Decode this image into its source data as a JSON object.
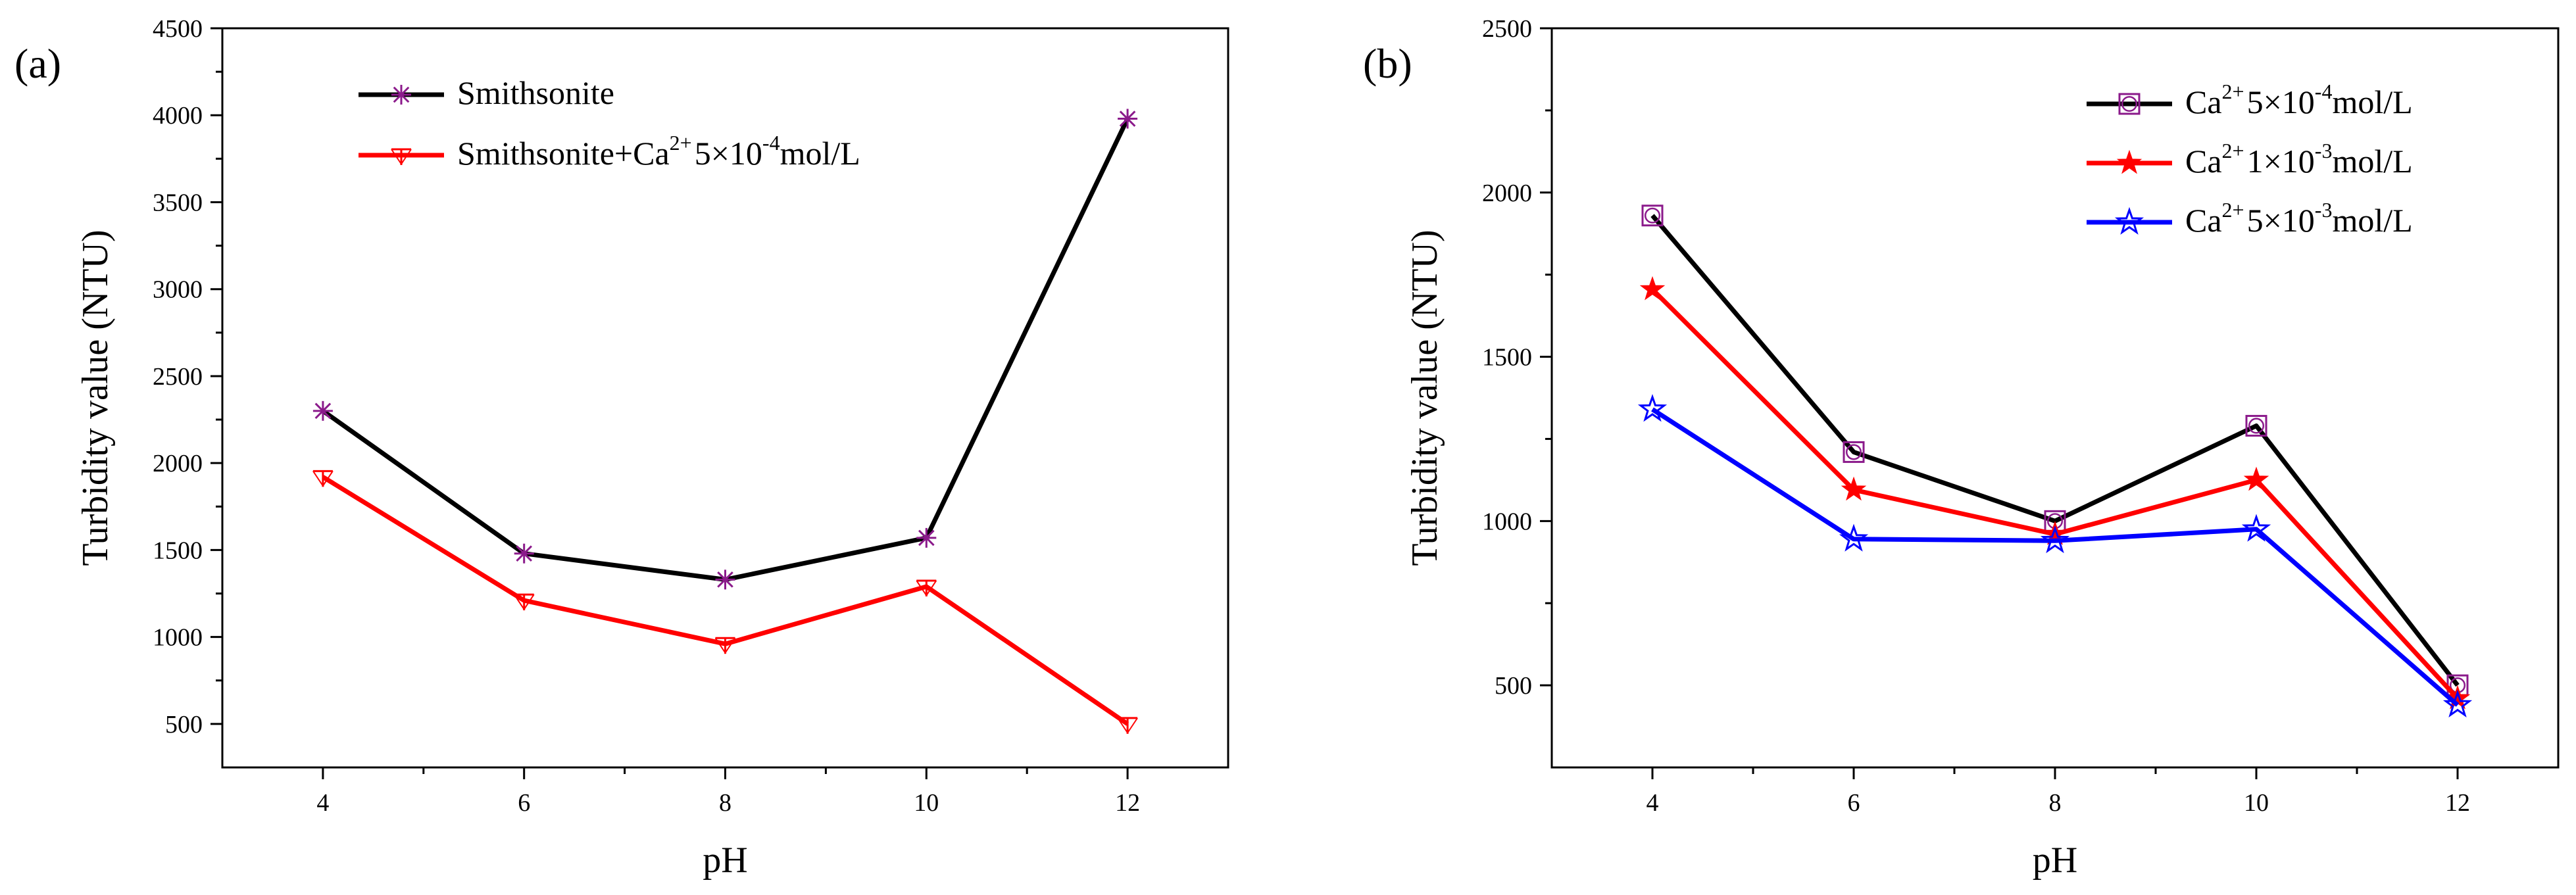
{
  "chart_data": [
    {
      "panel": "(a)",
      "type": "line",
      "xlabel": "pH",
      "ylabel": "Turbidity value (NTU)",
      "xlim": [
        3,
        13
      ],
      "ylim": [
        250,
        4500
      ],
      "x_ticks": [
        4,
        6,
        8,
        10,
        12
      ],
      "x_minor_ticks": [
        5,
        7,
        9,
        11
      ],
      "y_ticks": [
        500,
        1000,
        1500,
        2000,
        2500,
        3000,
        3500,
        4000,
        4500
      ],
      "legend_position": "top-left",
      "series": [
        {
          "legend": {
            "text": "Smithsonite"
          },
          "color": "#000000",
          "marker_color": "#8b1a8b",
          "marker": "asterisk",
          "x": [
            4,
            6,
            8,
            10,
            12
          ],
          "y": [
            2300,
            1480,
            1330,
            1570,
            3980
          ]
        },
        {
          "legend": {
            "text": "Smithsonite+Ca",
            "sup": "2+",
            "mid": "5×10",
            "sup2": "-4",
            "tail": "mol/L"
          },
          "color": "#ff0000",
          "marker_color": "#ff0000",
          "marker": "tri-down",
          "x": [
            4,
            6,
            8,
            10,
            12
          ],
          "y": [
            1920,
            1210,
            960,
            1290,
            500
          ]
        }
      ]
    },
    {
      "panel": "(b)",
      "type": "line",
      "xlabel": "pH",
      "ylabel": "Turbidity value (NTU)",
      "xlim": [
        3,
        13
      ],
      "ylim": [
        250,
        2500
      ],
      "x_ticks": [
        4,
        6,
        8,
        10,
        12
      ],
      "x_minor_ticks": [
        5,
        7,
        9,
        11
      ],
      "y_ticks": [
        500,
        1000,
        1500,
        2000,
        2500
      ],
      "legend_position": "top-right",
      "series": [
        {
          "legend": {
            "text": "Ca",
            "sup": "2+",
            "mid": "5×10",
            "sup2": "-4",
            "tail": "mol/L"
          },
          "color": "#000000",
          "marker_color": "#8b1a8b",
          "marker": "square-circle",
          "x": [
            4,
            6,
            8,
            10,
            12
          ],
          "y": [
            1930,
            1210,
            1000,
            1290,
            500
          ]
        },
        {
          "legend": {
            "text": "Ca",
            "sup": "2+",
            "mid": "1×10",
            "sup2": "-3",
            "tail": "mol/L"
          },
          "color": "#ff0000",
          "marker_color": "#ff0000",
          "marker": "star-filled",
          "x": [
            4,
            6,
            8,
            10,
            12
          ],
          "y": [
            1705,
            1095,
            960,
            1125,
            460
          ]
        },
        {
          "legend": {
            "text": "Ca",
            "sup": "2+",
            "mid": "5×10",
            "sup2": "-3",
            "tail": "mol/L"
          },
          "color": "#0000ff",
          "marker_color": "#0000ff",
          "marker": "star-open",
          "x": [
            4,
            6,
            8,
            10,
            12
          ],
          "y": [
            1340,
            945,
            940,
            975,
            440
          ]
        }
      ]
    }
  ]
}
